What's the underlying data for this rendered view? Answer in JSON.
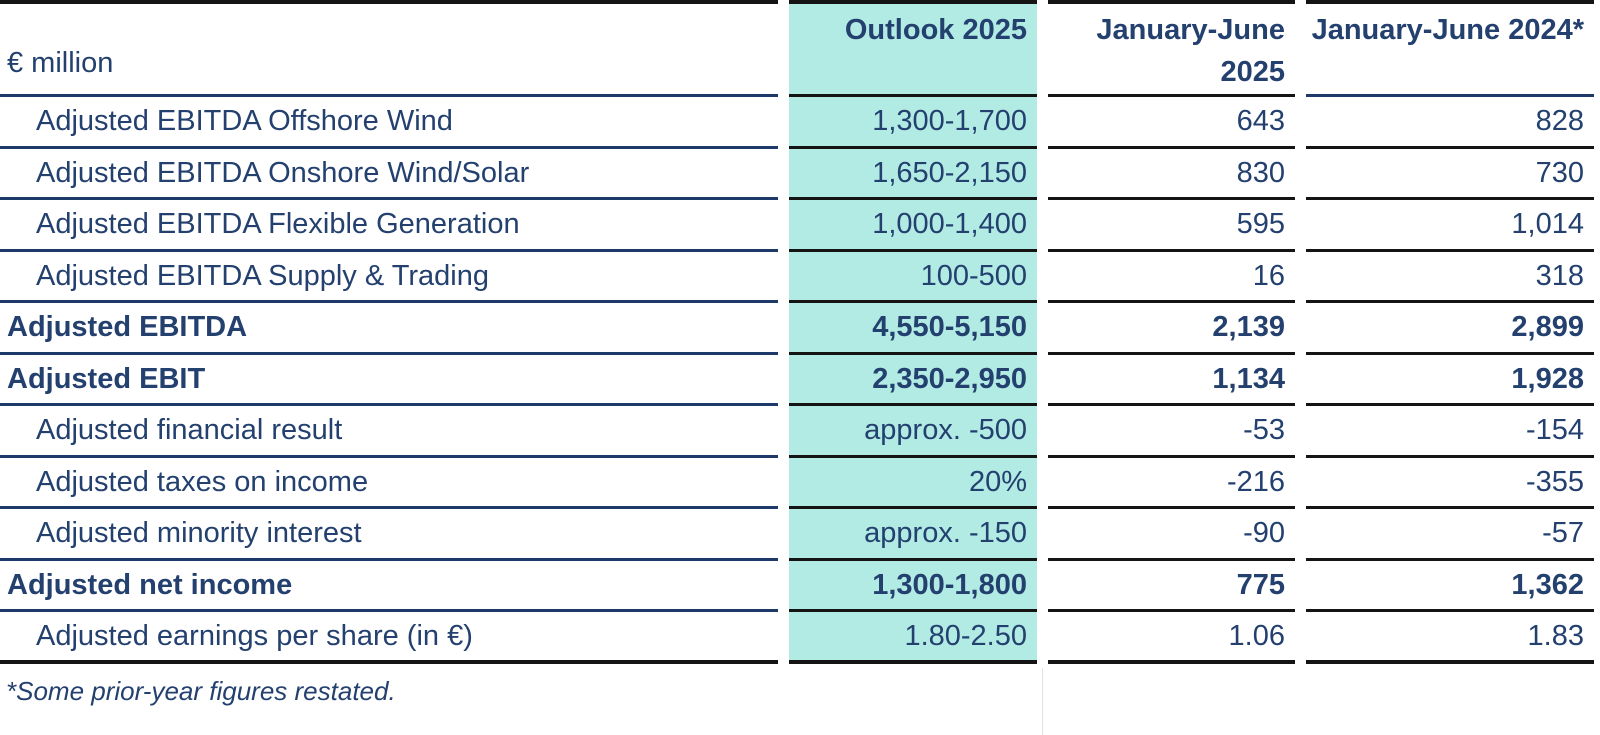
{
  "colors": {
    "text_navy": "#23406f",
    "line_navy": "#1e3a6b",
    "line_black": "#141414",
    "outlook_highlight_teal": "#b2ebe4"
  },
  "table": {
    "unit_label": "€ million",
    "column_headers": {
      "outlook": "Outlook 2025",
      "h1_2025": "January-June 2025",
      "h1_2024": "January-June 2024*"
    },
    "rows": [
      {
        "label": "Adjusted EBITDA Offshore Wind",
        "outlook": "1,300-1,700",
        "h1_2025": "643",
        "h1_2024": "828",
        "style": "sub"
      },
      {
        "label": "Adjusted EBITDA Onshore Wind/Solar",
        "outlook": "1,650-2,150",
        "h1_2025": "830",
        "h1_2024": "730",
        "style": "sub"
      },
      {
        "label": "Adjusted EBITDA Flexible Generation",
        "outlook": "1,000-1,400",
        "h1_2025": "595",
        "h1_2024": "1,014",
        "style": "sub"
      },
      {
        "label": "Adjusted EBITDA Supply & Trading",
        "outlook": "100-500",
        "h1_2025": "16",
        "h1_2024": "318",
        "style": "sub"
      },
      {
        "label": "Adjusted EBITDA",
        "outlook": "4,550-5,150",
        "h1_2025": "2,139",
        "h1_2024": "2,899",
        "style": "bold"
      },
      {
        "label": "Adjusted EBIT",
        "outlook": "2,350-2,950",
        "h1_2025": "1,134",
        "h1_2024": "1,928",
        "style": "bold"
      },
      {
        "label": "Adjusted financial result",
        "outlook": "approx. -500",
        "h1_2025": "-53",
        "h1_2024": "-154",
        "style": "sub"
      },
      {
        "label": "Adjusted taxes on income",
        "outlook": "20%",
        "h1_2025": "-216",
        "h1_2024": "-355",
        "style": "sub"
      },
      {
        "label": "Adjusted minority interest",
        "outlook": "approx. -150",
        "h1_2025": "-90",
        "h1_2024": "-57",
        "style": "sub"
      },
      {
        "label": "Adjusted net income",
        "outlook": "1,300-1,800",
        "h1_2025": "775",
        "h1_2024": "1,362",
        "style": "bold"
      },
      {
        "label": "Adjusted earnings per share (in €)",
        "outlook": "1.80-2.50",
        "h1_2025": "1.06",
        "h1_2024": "1.83",
        "style": "sub"
      }
    ],
    "footnote": "*Some prior-year figures restated."
  }
}
